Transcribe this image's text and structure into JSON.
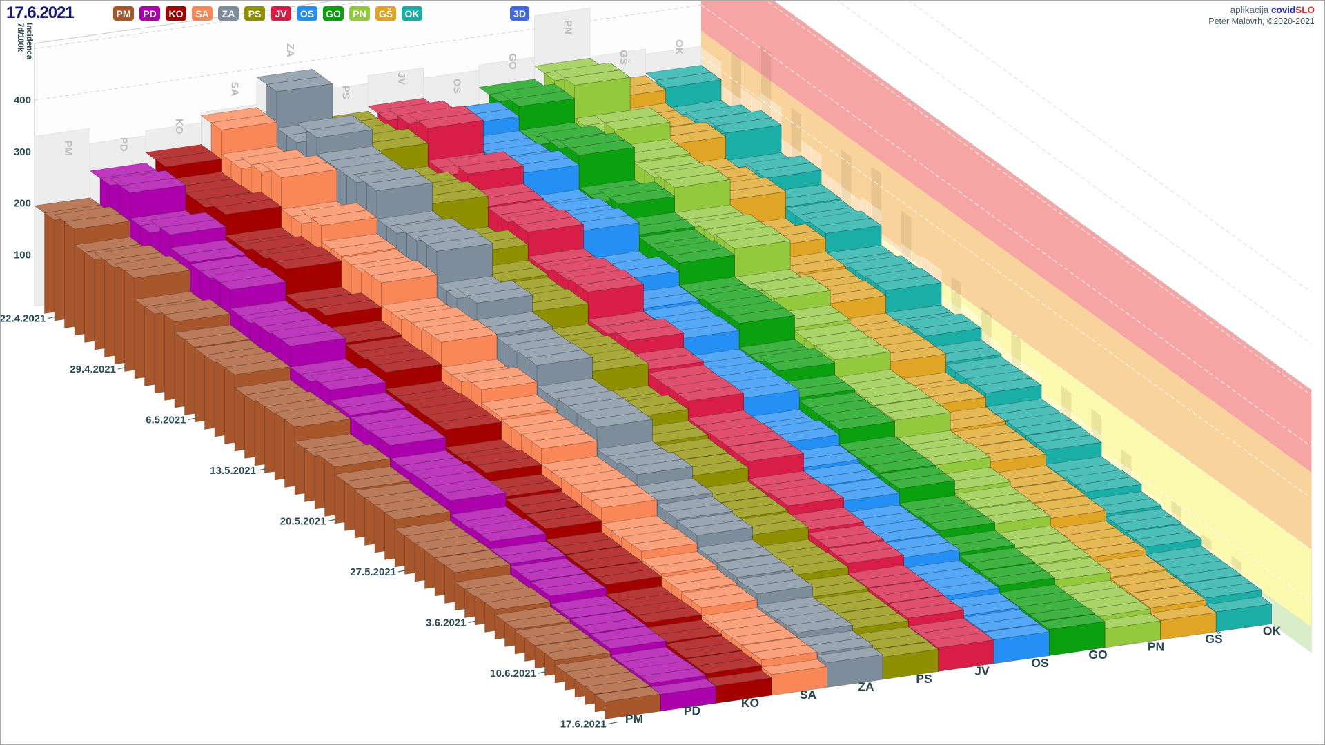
{
  "header": {
    "date": "17.6.2021",
    "buttons": [
      {
        "key": "PM",
        "color": "#a8572c"
      },
      {
        "key": "PD",
        "color": "#ab00ab"
      },
      {
        "key": "KO",
        "color": "#a40000"
      },
      {
        "key": "SA",
        "color": "#fa8757"
      },
      {
        "key": "ZA",
        "color": "#7e8d9b"
      },
      {
        "key": "PS",
        "color": "#8f9000"
      },
      {
        "key": "JV",
        "color": "#d81e46"
      },
      {
        "key": "OS",
        "color": "#2490f5"
      },
      {
        "key": "GO",
        "color": "#0aa00f"
      },
      {
        "key": "PN",
        "color": "#93c93d"
      },
      {
        "key": "GŠ",
        "color": "#e0a524"
      },
      {
        "key": "OK",
        "color": "#1aaea6"
      }
    ],
    "mode_button": {
      "label": "3D",
      "color": "#4169e1"
    },
    "credits": {
      "app_prefix": "aplikacija",
      "brand_covid": "covid",
      "brand_slo": "SLO",
      "author": "Peter Malovrh, ©2020-2021"
    }
  },
  "chart_data": {
    "type": "bar",
    "subtype": "3d-daily-ribbons",
    "ylabel_lines": [
      "7d/100k",
      "Incidenca"
    ],
    "yticks": [
      100,
      200,
      300,
      400
    ],
    "ylim": [
      0,
      510
    ],
    "grid": "dashed",
    "dates": [
      "22.4.2021",
      "29.4.2021",
      "6.5.2021",
      "13.5.2021",
      "20.5.2021",
      "27.5.2021",
      "3.6.2021",
      "10.6.2021",
      "17.6.2021"
    ],
    "days": 57,
    "series": [
      {
        "name": "PM",
        "color": "#a8572c",
        "backdrop": 330,
        "weekly": [
          195,
          180,
          150,
          128,
          105,
          82,
          60,
          42,
          30
        ]
      },
      {
        "name": "PD",
        "color": "#ab00ab",
        "backdrop": 300,
        "weekly": [
          240,
          222,
          188,
          156,
          126,
          98,
          70,
          48,
          34
        ]
      },
      {
        "name": "KO",
        "color": "#a40000",
        "backdrop": 310,
        "weekly": [
          255,
          238,
          205,
          170,
          136,
          105,
          75,
          52,
          36
        ]
      },
      {
        "name": "SA",
        "color": "#fa8757",
        "backdrop": 330,
        "weekly": [
          300,
          282,
          245,
          205,
          165,
          128,
          92,
          62,
          44
        ]
      },
      {
        "name": "ZA",
        "color": "#7e8d9b",
        "backdrop": 375,
        "weekly": [
          345,
          325,
          282,
          235,
          188,
          145,
          104,
          70,
          48
        ]
      },
      {
        "name": "PS",
        "color": "#8f9000",
        "backdrop": 340,
        "weekly": [
          295,
          278,
          240,
          200,
          160,
          124,
          88,
          60,
          42
        ]
      },
      {
        "name": "JV",
        "color": "#d81e46",
        "backdrop": 355,
        "weekly": [
          315,
          296,
          256,
          214,
          172,
          132,
          95,
          64,
          44
        ]
      },
      {
        "name": "OS",
        "color": "#2490f5",
        "backdrop": 335,
        "weekly": [
          292,
          275,
          238,
          198,
          158,
          122,
          87,
          60,
          43
        ]
      },
      {
        "name": "GO",
        "color": "#0aa00f",
        "backdrop": 345,
        "weekly": [
          302,
          285,
          248,
          206,
          165,
          128,
          92,
          63,
          46
        ]
      },
      {
        "name": "PN",
        "color": "#93c93d",
        "backdrop": 425,
        "weekly": [
          318,
          298,
          255,
          210,
          166,
          126,
          88,
          58,
          38
        ]
      },
      {
        "name": "GŠ",
        "color": "#e0a524",
        "backdrop": 330,
        "weekly": [
          265,
          250,
          215,
          180,
          144,
          112,
          80,
          55,
          40
        ]
      },
      {
        "name": "OK",
        "color": "#1aaea6",
        "backdrop": 320,
        "weekly": [
          262,
          250,
          218,
          184,
          148,
          116,
          84,
          58,
          42
        ]
      }
    ],
    "wall_bands": [
      {
        "from": 0,
        "to": 50,
        "color": "#d9edcb"
      },
      {
        "from": 50,
        "to": 200,
        "color": "#fbf9ad"
      },
      {
        "from": 200,
        "to": 350,
        "color": "#f8d49c"
      },
      {
        "from": 350,
        "to": 510,
        "color": "#f6a4a4"
      }
    ],
    "wall_shadow_of": "OK",
    "legend_position": "top"
  }
}
